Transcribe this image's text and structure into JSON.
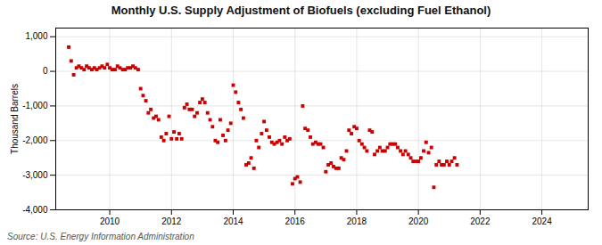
{
  "chart_data": {
    "type": "scatter",
    "title": "Monthly U.S. Supply Adjustment of Biofuels (excluding Fuel Ethanol)",
    "ylabel": "Thousand Barrels",
    "source": "Source: U.S. Energy Information Administration",
    "color": "#cc0000",
    "marker": "square",
    "grid": true,
    "xlim": [
      2008.25,
      2025.5
    ],
    "ylim": [
      -4000,
      1250
    ],
    "xticks": [
      2010,
      2012,
      2014,
      2016,
      2018,
      2020,
      2022,
      2024
    ],
    "yticks": [
      {
        "value": 1000,
        "label": "1,000"
      },
      0,
      {
        "value": -1000,
        "label": "-1,000"
      },
      {
        "value": -2000,
        "label": "-2,000"
      },
      {
        "value": -3000,
        "label": "-3,000"
      },
      {
        "value": -4000,
        "label": "-4,000"
      }
    ],
    "x": [
      2008.67,
      2008.75,
      2008.83,
      2008.92,
      2009.0,
      2009.08,
      2009.17,
      2009.25,
      2009.33,
      2009.42,
      2009.5,
      2009.58,
      2009.67,
      2009.75,
      2009.83,
      2009.92,
      2010.0,
      2010.08,
      2010.17,
      2010.25,
      2010.33,
      2010.42,
      2010.5,
      2010.58,
      2010.67,
      2010.75,
      2010.83,
      2010.92,
      2011.0,
      2011.08,
      2011.17,
      2011.25,
      2011.33,
      2011.42,
      2011.5,
      2011.58,
      2011.67,
      2011.75,
      2011.83,
      2011.92,
      2012.0,
      2012.08,
      2012.17,
      2012.25,
      2012.33,
      2012.42,
      2012.5,
      2012.58,
      2012.67,
      2012.75,
      2012.83,
      2012.92,
      2013.0,
      2013.08,
      2013.17,
      2013.25,
      2013.33,
      2013.42,
      2013.5,
      2013.58,
      2013.67,
      2013.75,
      2013.83,
      2013.92,
      2014.0,
      2014.08,
      2014.17,
      2014.25,
      2014.33,
      2014.42,
      2014.5,
      2014.58,
      2014.67,
      2014.75,
      2014.83,
      2014.92,
      2015.0,
      2015.08,
      2015.17,
      2015.25,
      2015.33,
      2015.42,
      2015.5,
      2015.58,
      2015.67,
      2015.75,
      2015.83,
      2015.92,
      2016.0,
      2016.08,
      2016.17,
      2016.25,
      2016.33,
      2016.42,
      2016.5,
      2016.58,
      2016.67,
      2016.75,
      2016.83,
      2016.92,
      2017.0,
      2017.08,
      2017.17,
      2017.25,
      2017.33,
      2017.42,
      2017.5,
      2017.58,
      2017.67,
      2017.75,
      2017.83,
      2017.92,
      2018.0,
      2018.08,
      2018.17,
      2018.25,
      2018.33,
      2018.42,
      2018.5,
      2018.58,
      2018.67,
      2018.75,
      2018.83,
      2018.92,
      2019.0,
      2019.08,
      2019.17,
      2019.25,
      2019.33,
      2019.42,
      2019.5,
      2019.58,
      2019.67,
      2019.75,
      2019.83,
      2019.92,
      2020.0,
      2020.08,
      2020.17,
      2020.25,
      2020.33,
      2020.42,
      2020.5,
      2020.58,
      2020.67,
      2020.75,
      2020.83,
      2020.92,
      2021.0,
      2021.08,
      2021.17,
      2021.25
    ],
    "values": [
      700,
      300,
      -100,
      100,
      150,
      100,
      50,
      150,
      100,
      50,
      100,
      50,
      100,
      150,
      100,
      200,
      100,
      50,
      50,
      150,
      100,
      50,
      50,
      100,
      100,
      150,
      100,
      50,
      -500,
      -700,
      -850,
      -1200,
      -1100,
      -1350,
      -1300,
      -1400,
      -1900,
      -2000,
      -1800,
      -1300,
      -1950,
      -1750,
      -1950,
      -1800,
      -1950,
      -1050,
      -950,
      -1100,
      -1100,
      -1300,
      -1200,
      -900,
      -800,
      -900,
      -1200,
      -1400,
      -1600,
      -2000,
      -2050,
      -1400,
      -1850,
      -2000,
      -1700,
      -1500,
      -400,
      -600,
      -900,
      -1100,
      -1350,
      -2700,
      -2650,
      -2500,
      -2800,
      -2000,
      -2200,
      -1800,
      -1450,
      -1700,
      -1900,
      -2050,
      -2100,
      -2050,
      -2000,
      -2100,
      -1900,
      -2000,
      -1950,
      -3250,
      -3100,
      -3050,
      -3200,
      -1000,
      -1650,
      -1700,
      -1900,
      -2100,
      -2050,
      -2100,
      -2100,
      -2200,
      -2900,
      -2700,
      -2650,
      -2750,
      -2800,
      -2800,
      -2500,
      -2550,
      -2300,
      -1700,
      -1800,
      -1600,
      -1650,
      -2000,
      -2100,
      -2200,
      -2300,
      -1700,
      -1750,
      -2400,
      -2300,
      -2200,
      -2300,
      -2300,
      -2200,
      -2100,
      -2100,
      -2100,
      -2200,
      -2300,
      -2400,
      -2300,
      -2400,
      -2500,
      -2600,
      -2600,
      -2600,
      -2500,
      -2300,
      -2050,
      -2350,
      -2200,
      -3350,
      -2700,
      -2600,
      -2700,
      -2700,
      -2600,
      -2700,
      -2600,
      -2500,
      -2700
    ]
  }
}
